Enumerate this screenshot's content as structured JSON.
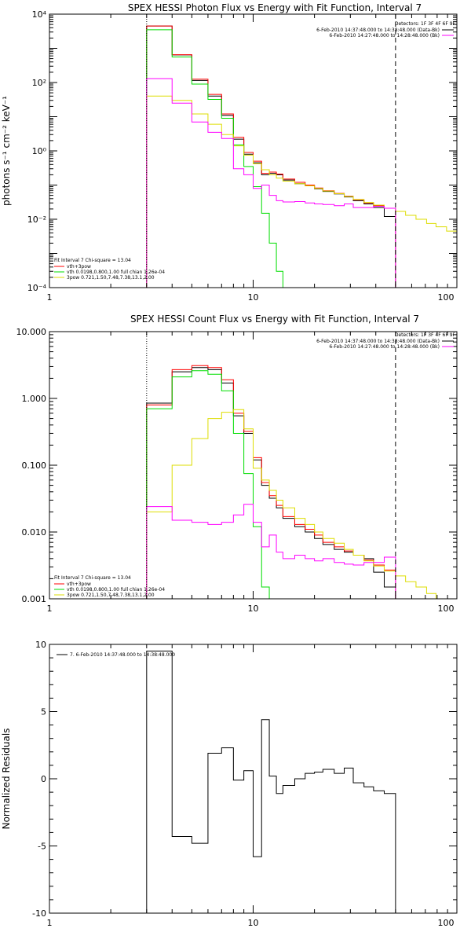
{
  "chart_data": [
    {
      "type": "line",
      "title": "SPEX HESSI Photon Flux vs Energy with Fit Function, Interval 7",
      "xlabel": "",
      "ylabel": "photons s⁻¹ cm⁻² keV⁻¹",
      "xscale": "log",
      "yscale": "log",
      "xlim": [
        1,
        100
      ],
      "ylim": [
        0.0001,
        10000
      ],
      "xticks": [
        1,
        10,
        100
      ],
      "xtick_labels": [
        "1",
        "10",
        "100"
      ],
      "yticks": [
        0.0001,
        0.01,
        1,
        100,
        10000
      ],
      "ytick_labels": [
        "10⁻⁴",
        "10⁻²",
        "10⁰",
        "10²",
        "10⁴"
      ],
      "vlines": [
        {
          "x": 3,
          "style": "dotted",
          "color": "#000000"
        },
        {
          "x": 50,
          "style": "dashed",
          "color": "#000000"
        }
      ],
      "legend_topright": {
        "header": "Detectors: 1F 3F 4F 6F 9F",
        "lines": [
          {
            "text": "6-Feb-2010 14:37:48.000 to 14:38:48.000 (Data-Bk)",
            "color": "#000000"
          },
          {
            "text": "6-Feb-2010 14:27:48.000 to 14:28:48.000 (Bk)",
            "color": "#ff00ff"
          }
        ]
      },
      "legend_bottomleft": {
        "header": "Fit Interval  7    Chi-square = 13.04",
        "lines": [
          {
            "text": "vth+3pow",
            "color": "#ff0000"
          },
          {
            "text": "vth 0.0198,0.800,1.00  full chian 1.26e-04",
            "color": "#00dd00"
          },
          {
            "text": "3pow 0.721,1.50,7.48,7.38,13.1,2.00",
            "color": "#dddd00"
          }
        ]
      },
      "edges": [
        3,
        4,
        5,
        6,
        7,
        8,
        9,
        10,
        11,
        12,
        13,
        14,
        16,
        18,
        20,
        22,
        25,
        28,
        31,
        35,
        39,
        44,
        50,
        56,
        63,
        71,
        79,
        89,
        100
      ],
      "series": [
        {
          "color": "#000000",
          "values": [
            4500,
            640,
            115,
            40,
            11,
            2.2,
            0.8,
            0.45,
            0.2,
            0.22,
            0.2,
            0.14,
            0.11,
            0.095,
            0.078,
            0.065,
            0.055,
            0.045,
            0.035,
            0.028,
            0.022,
            0.012
          ]
        },
        {
          "color": "#ff0000",
          "values": [
            4500,
            650,
            125,
            45,
            12,
            2.5,
            0.9,
            0.5,
            0.22,
            0.24,
            0.21,
            0.15,
            0.12,
            0.1,
            0.082,
            0.068,
            0.057,
            0.047,
            0.037,
            0.03,
            0.025,
            0.021
          ]
        },
        {
          "color": "#00dd00",
          "values": [
            3500,
            560,
            90,
            32,
            9,
            1.5,
            0.35,
            0.09,
            0.015,
            0.002,
            0.0003,
            0.0001
          ]
        },
        {
          "color": "#dddd00",
          "values": [
            40,
            30,
            12,
            6,
            3,
            1.4,
            0.75,
            0.42,
            0.28,
            0.2,
            0.16,
            0.13,
            0.11,
            0.095,
            0.08,
            0.067,
            0.056,
            0.046,
            0.038,
            0.031,
            0.026,
            0.021,
            0.017,
            0.013,
            0.01,
            0.0075,
            0.006,
            0.0045
          ]
        },
        {
          "color": "#ff00ff",
          "values": [
            130,
            25,
            7,
            3.5,
            2.3,
            0.3,
            0.2,
            0.08,
            0.1,
            0.05,
            0.035,
            0.032,
            0.033,
            0.03,
            0.028,
            0.027,
            0.025,
            0.028,
            0.022,
            0.022,
            0.024,
            0.021
          ]
        }
      ]
    },
    {
      "type": "line",
      "title": "SPEX HESSI Count Flux vs Energy with Fit Function, Interval 7",
      "xlabel": "",
      "ylabel": "",
      "xscale": "log",
      "yscale": "log",
      "xlim": [
        1,
        100
      ],
      "ylim": [
        0.001,
        10
      ],
      "xticks": [
        1,
        10,
        100
      ],
      "xtick_labels": [
        "1",
        "10",
        "100"
      ],
      "yticks": [
        0.001,
        0.01,
        0.1,
        1,
        10
      ],
      "ytick_labels": [
        "0.001",
        "0.010",
        "0.100",
        "1.000",
        "10.000"
      ],
      "vlines": [
        {
          "x": 3,
          "style": "dotted",
          "color": "#000000"
        },
        {
          "x": 50,
          "style": "dashed",
          "color": "#000000"
        }
      ],
      "legend_topright": {
        "header": "Detectors: 1F 3F 4F 6F 9F",
        "lines": [
          {
            "text": "6-Feb-2010 14:37:48.000 to 14:38:48.000 (Data-Bk)",
            "color": "#000000"
          },
          {
            "text": "6-Feb-2010 14:27:48.000 to 14:28:48.000 (Bk)",
            "color": "#ff00ff"
          }
        ]
      },
      "legend_bottomleft": {
        "header": "Fit Interval  7    Chi-square = 13.04",
        "lines": [
          {
            "text": "vth+3pow",
            "color": "#ff0000"
          },
          {
            "text": "vth 0.0198,0.800,1.00  full chian 1.26e-04",
            "color": "#00dd00"
          },
          {
            "text": "3pow 0.721,1.50,7.48,7.38,13.1,2.00",
            "color": "#dddd00"
          }
        ]
      },
      "edges": [
        3,
        4,
        5,
        6,
        7,
        8,
        9,
        10,
        11,
        12,
        13,
        14,
        16,
        18,
        20,
        22,
        25,
        28,
        31,
        35,
        39,
        44,
        50,
        56,
        63,
        71,
        79,
        89,
        100
      ],
      "series": [
        {
          "color": "#000000",
          "values": [
            0.85,
            2.5,
            2.9,
            2.7,
            1.7,
            0.55,
            0.3,
            0.12,
            0.05,
            0.032,
            0.023,
            0.016,
            0.012,
            0.01,
            0.008,
            0.0065,
            0.0055,
            0.005,
            0.0045,
            0.004,
            0.0025,
            0.0015
          ]
        },
        {
          "color": "#ff0000",
          "values": [
            0.8,
            2.7,
            3.1,
            2.9,
            1.9,
            0.6,
            0.32,
            0.13,
            0.055,
            0.035,
            0.025,
            0.017,
            0.013,
            0.011,
            0.009,
            0.007,
            0.006,
            0.0052,
            0.0045,
            0.0038,
            0.0032,
            0.0027
          ]
        },
        {
          "color": "#00dd00",
          "values": [
            0.7,
            2.1,
            2.6,
            2.3,
            1.3,
            0.3,
            0.075,
            0.012,
            0.0015,
            0.0001
          ]
        },
        {
          "color": "#dddd00",
          "values": [
            0.02,
            0.1,
            0.25,
            0.5,
            0.62,
            0.68,
            0.35,
            0.09,
            0.06,
            0.042,
            0.03,
            0.023,
            0.016,
            0.013,
            0.01,
            0.008,
            0.0068,
            0.0055,
            0.0045,
            0.0037,
            0.0031,
            0.0026,
            0.0022,
            0.0018,
            0.0015,
            0.0012,
            0.001,
            0.0008
          ]
        },
        {
          "color": "#ff00ff",
          "values": [
            0.024,
            0.015,
            0.014,
            0.013,
            0.014,
            0.018,
            0.026,
            0.014,
            0.006,
            0.009,
            0.005,
            0.004,
            0.0045,
            0.004,
            0.0037,
            0.004,
            0.0035,
            0.0033,
            0.0032,
            0.0035,
            0.0035,
            0.0042
          ]
        }
      ]
    },
    {
      "type": "line",
      "title": "",
      "xlabel": "",
      "ylabel": "Normalized Residuals",
      "xscale": "log",
      "yscale": "linear",
      "xlim": [
        1,
        100
      ],
      "ylim": [
        -10,
        10
      ],
      "xticks": [
        1,
        10,
        100
      ],
      "xtick_labels": [
        "1",
        "10",
        "100"
      ],
      "yticks": [
        -10,
        -5,
        0,
        5,
        10
      ],
      "ytick_labels": [
        "-10",
        "-5",
        "0",
        "5",
        "10"
      ],
      "vlines": [],
      "legend_topleft": {
        "lines": [
          {
            "text": "7.  6-Feb-2010 14:37:48.000 to 14:38:48.000",
            "color": "#000000"
          }
        ]
      },
      "edges": [
        3,
        4,
        5,
        6,
        7,
        8,
        9,
        10,
        11,
        12,
        13,
        14,
        16,
        18,
        20,
        22,
        25,
        28,
        31,
        35,
        39,
        44,
        50
      ],
      "series": [
        {
          "color": "#000000",
          "values": [
            9.5,
            -4.3,
            -4.8,
            1.9,
            2.3,
            -0.1,
            0.6,
            -5.8,
            4.4,
            0.2,
            -1.1,
            -0.5,
            0.0,
            0.4,
            0.5,
            0.7,
            0.4,
            0.8,
            -0.3,
            -0.6,
            -0.9,
            -1.1
          ],
          "drop_to_axis": true
        }
      ]
    }
  ]
}
